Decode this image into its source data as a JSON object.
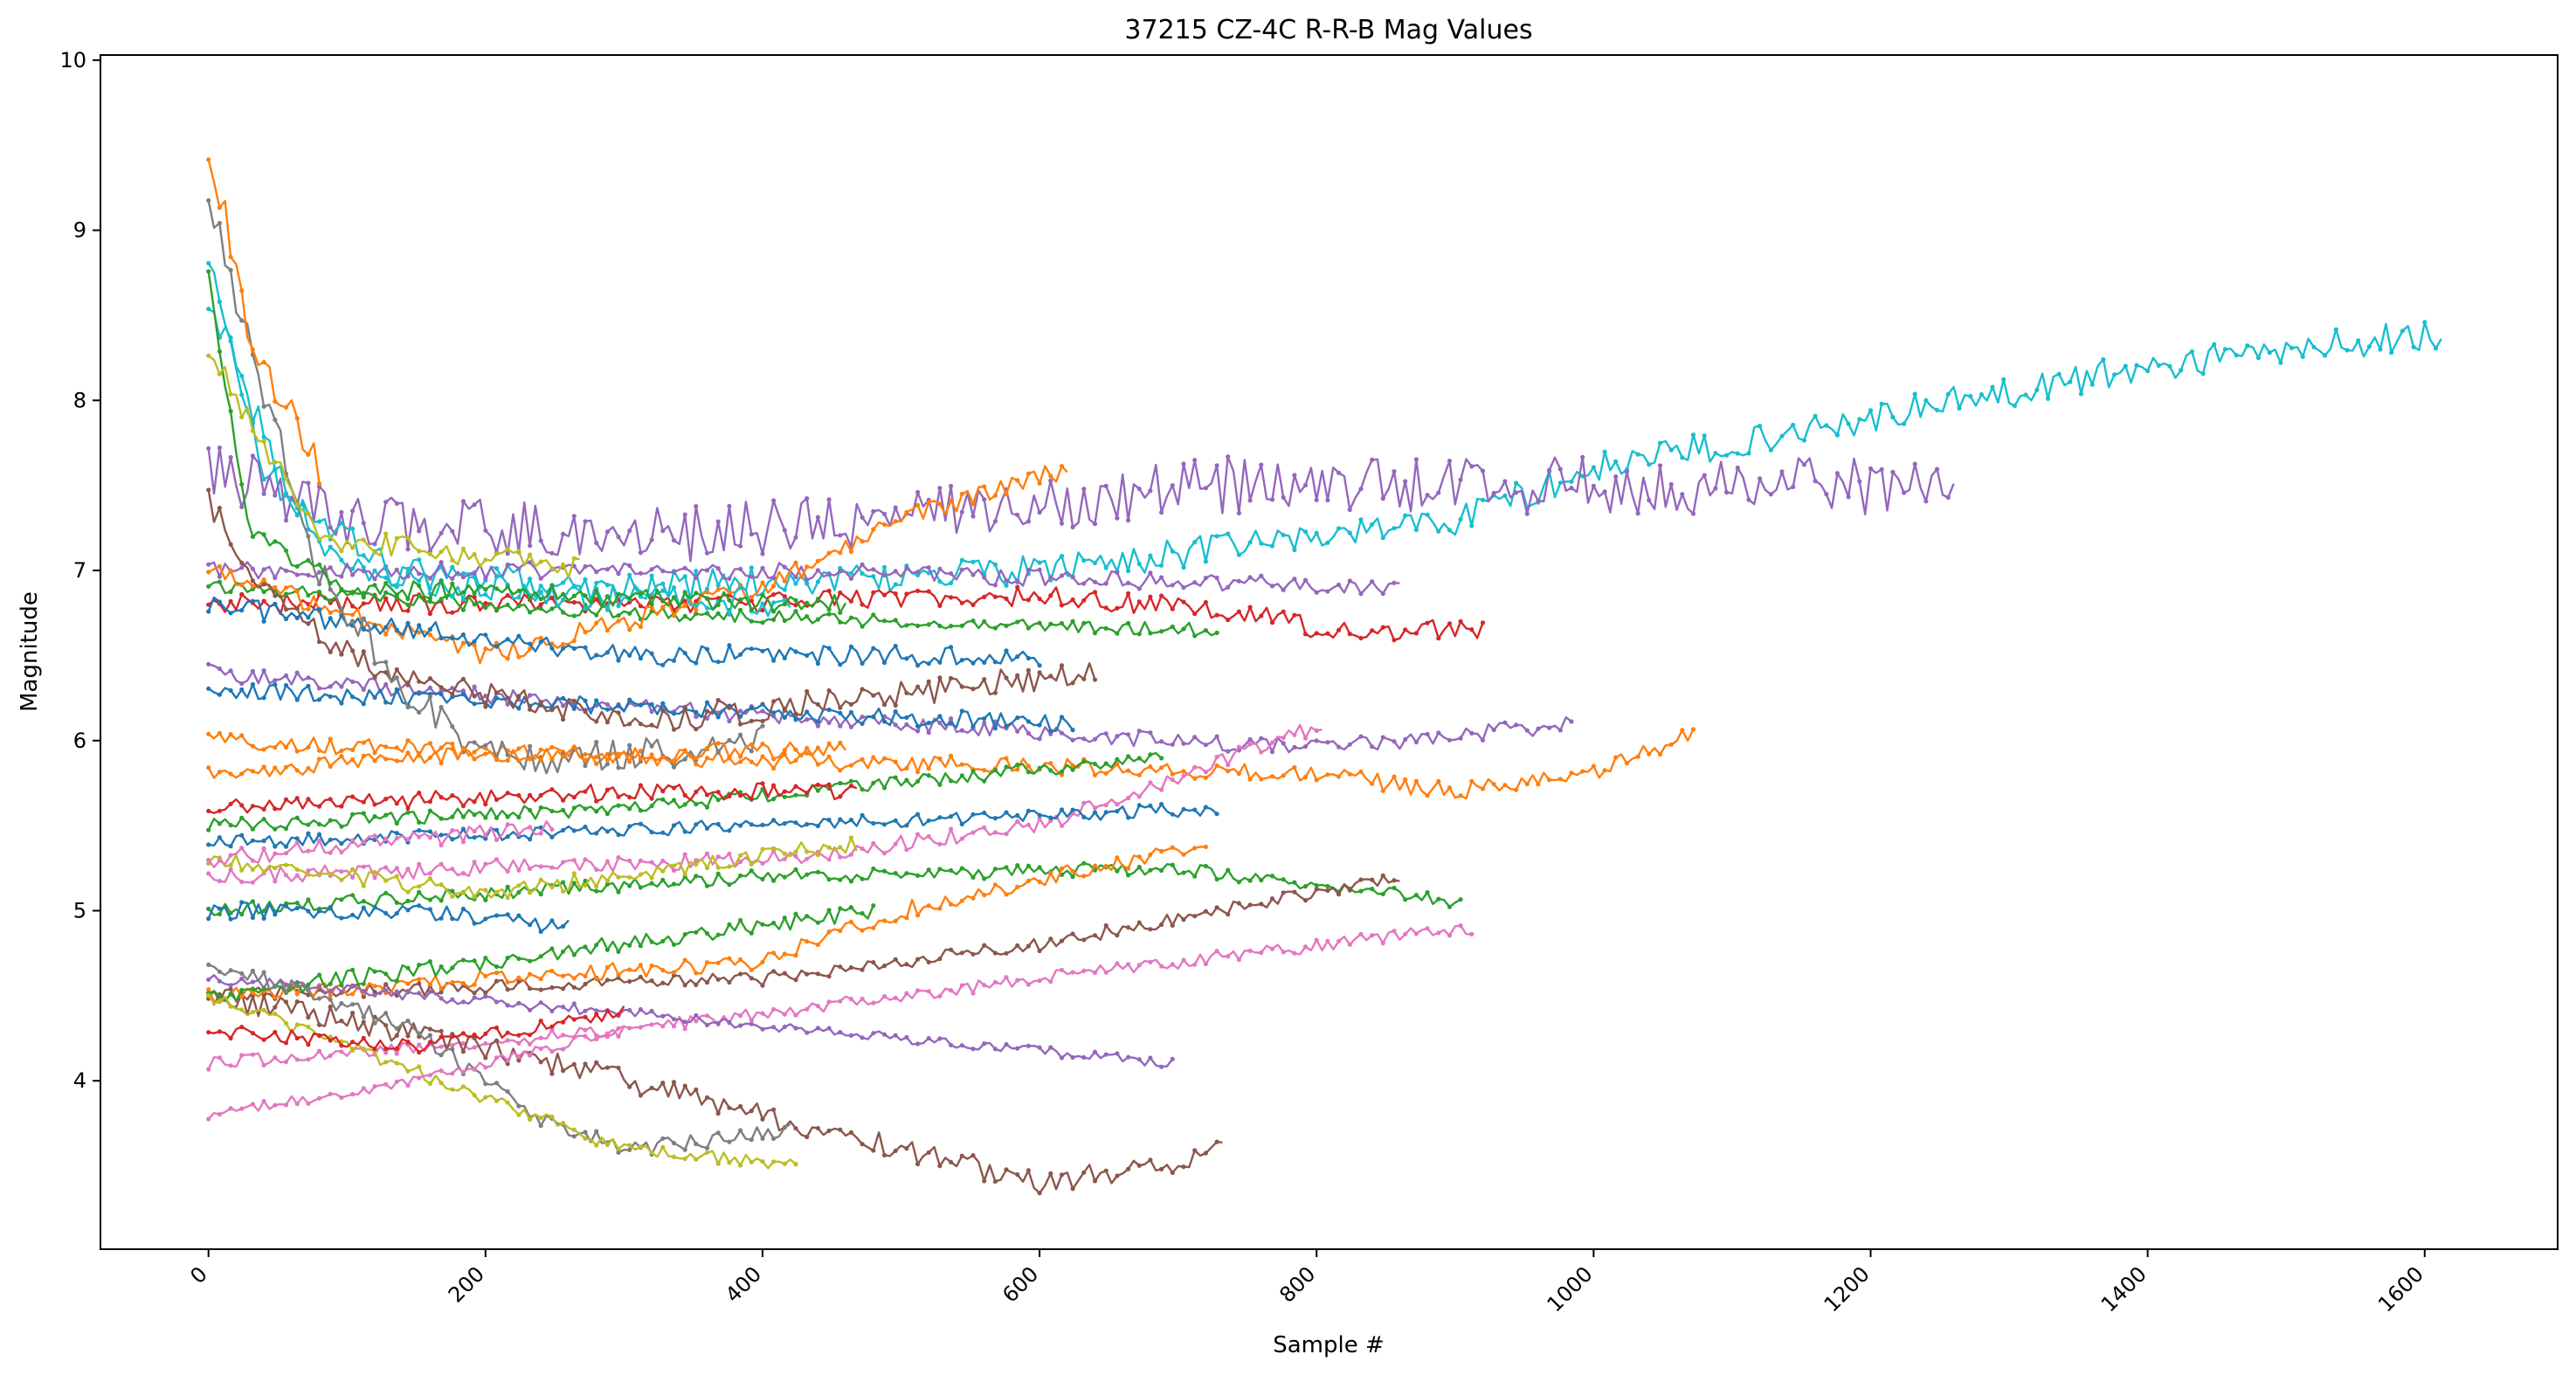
{
  "chart_data": {
    "type": "line",
    "title": "37215 CZ-4C R-R-B Mag Values",
    "xlabel": "Sample #",
    "ylabel": "Magnitude",
    "xlim": [
      -78,
      1696
    ],
    "ylim": [
      3.01,
      10.03
    ],
    "x_ticks": [
      0,
      200,
      400,
      600,
      800,
      1000,
      1200,
      1400,
      1600
    ],
    "y_ticks": [
      4,
      5,
      6,
      7,
      8,
      9,
      10
    ],
    "grid": false,
    "legend": "none",
    "palette": [
      "#1f77b4",
      "#ff7f0e",
      "#2ca02c",
      "#d62728",
      "#9467bd",
      "#8c564b",
      "#e377c2",
      "#7f7f7f",
      "#bcbd22",
      "#17becf"
    ],
    "series": [
      {
        "color": "#17becf",
        "length": 1615,
        "noise": 0.09,
        "points": [
          [
            0,
            8.8
          ],
          [
            40,
            7.6
          ],
          [
            100,
            7.0
          ],
          [
            300,
            6.9
          ],
          [
            600,
            7.0
          ],
          [
            800,
            7.2
          ],
          [
            900,
            7.3
          ],
          [
            1000,
            7.6
          ],
          [
            1200,
            7.9
          ],
          [
            1400,
            8.2
          ],
          [
            1615,
            8.4
          ]
        ]
      },
      {
        "color": "#9467bd",
        "length": 1262,
        "noise": 0.17,
        "points": [
          [
            0,
            7.6
          ],
          [
            100,
            7.3
          ],
          [
            300,
            7.2
          ],
          [
            500,
            7.3
          ],
          [
            700,
            7.5
          ],
          [
            900,
            7.5
          ],
          [
            1100,
            7.5
          ],
          [
            1262,
            7.5
          ]
        ]
      },
      {
        "color": "#ff7f0e",
        "length": 1072,
        "noise": 0.05,
        "points": [
          [
            0,
            6.0
          ],
          [
            300,
            5.9
          ],
          [
            600,
            5.85
          ],
          [
            800,
            5.8
          ],
          [
            900,
            5.7
          ],
          [
            1000,
            5.8
          ],
          [
            1072,
            6.05
          ]
        ]
      },
      {
        "color": "#9467bd",
        "length": 985,
        "noise": 0.05,
        "points": [
          [
            0,
            6.4
          ],
          [
            300,
            6.2
          ],
          [
            600,
            6.05
          ],
          [
            800,
            5.95
          ],
          [
            985,
            6.1
          ]
        ]
      },
      {
        "color": "#d62728",
        "length": 920,
        "noise": 0.06,
        "points": [
          [
            0,
            6.8
          ],
          [
            300,
            6.8
          ],
          [
            600,
            6.85
          ],
          [
            760,
            6.75
          ],
          [
            800,
            6.65
          ],
          [
            920,
            6.65
          ]
        ]
      },
      {
        "color": "#e377c2",
        "length": 912,
        "noise": 0.04,
        "points": [
          [
            0,
            4.1
          ],
          [
            300,
            4.3
          ],
          [
            600,
            4.6
          ],
          [
            912,
            4.9
          ]
        ]
      },
      {
        "color": "#2ca02c",
        "length": 905,
        "noise": 0.04,
        "points": [
          [
            0,
            5.0
          ],
          [
            400,
            5.2
          ],
          [
            700,
            5.25
          ],
          [
            905,
            5.05
          ]
        ]
      },
      {
        "color": "#9467bd",
        "length": 860,
        "noise": 0.05,
        "points": [
          [
            0,
            7.0
          ],
          [
            400,
            7.0
          ],
          [
            860,
            6.9
          ]
        ]
      },
      {
        "color": "#8c564b",
        "length": 860,
        "noise": 0.04,
        "points": [
          [
            0,
            4.5
          ],
          [
            400,
            4.6
          ],
          [
            600,
            4.8
          ],
          [
            860,
            5.2
          ]
        ]
      },
      {
        "color": "#e377c2",
        "length": 805,
        "noise": 0.05,
        "points": [
          [
            0,
            5.2
          ],
          [
            400,
            5.3
          ],
          [
            600,
            5.5
          ],
          [
            805,
            6.1
          ]
        ]
      },
      {
        "color": "#8c564b",
        "length": 735,
        "noise": 0.07,
        "points": [
          [
            0,
            4.5
          ],
          [
            200,
            4.2
          ],
          [
            300,
            4.0
          ],
          [
            400,
            3.8
          ],
          [
            500,
            3.6
          ],
          [
            600,
            3.4
          ],
          [
            700,
            3.5
          ],
          [
            735,
            3.7
          ]
        ]
      },
      {
        "color": "#2ca02c",
        "length": 730,
        "noise": 0.04,
        "points": [
          [
            0,
            6.9
          ],
          [
            300,
            6.75
          ],
          [
            730,
            6.65
          ]
        ]
      },
      {
        "color": "#1f77b4",
        "length": 730,
        "noise": 0.04,
        "points": [
          [
            0,
            5.4
          ],
          [
            400,
            5.5
          ],
          [
            730,
            5.6
          ]
        ]
      },
      {
        "color": "#ff7f0e",
        "length": 720,
        "noise": 0.05,
        "points": [
          [
            0,
            4.5
          ],
          [
            400,
            4.7
          ],
          [
            500,
            5.0
          ],
          [
            720,
            5.4
          ]
        ]
      },
      {
        "color": "#9467bd",
        "length": 698,
        "noise": 0.03,
        "points": [
          [
            0,
            4.6
          ],
          [
            300,
            4.4
          ],
          [
            698,
            4.1
          ]
        ]
      },
      {
        "color": "#2ca02c",
        "length": 690,
        "noise": 0.04,
        "points": [
          [
            0,
            5.5
          ],
          [
            300,
            5.6
          ],
          [
            690,
            5.9
          ]
        ]
      },
      {
        "color": "#ff7f0e",
        "length": 620,
        "noise": 0.06,
        "points": [
          [
            0,
            7.0
          ],
          [
            200,
            6.5
          ],
          [
            400,
            6.9
          ],
          [
            500,
            7.3
          ],
          [
            620,
            7.6
          ]
        ]
      },
      {
        "color": "#1f77b4",
        "length": 625,
        "noise": 0.05,
        "points": [
          [
            0,
            6.3
          ],
          [
            300,
            6.2
          ],
          [
            625,
            6.1
          ]
        ]
      },
      {
        "color": "#8c564b",
        "length": 640,
        "noise": 0.08,
        "points": [
          [
            0,
            7.4
          ],
          [
            50,
            6.8
          ],
          [
            120,
            6.4
          ],
          [
            300,
            6.1
          ],
          [
            640,
            6.4
          ]
        ]
      },
      {
        "color": "#1f77b4",
        "length": 600,
        "noise": 0.06,
        "points": [
          [
            0,
            6.8
          ],
          [
            300,
            6.5
          ],
          [
            600,
            6.5
          ]
        ]
      },
      {
        "color": "#2ca02c",
        "length": 480,
        "noise": 0.05,
        "points": [
          [
            0,
            4.5
          ],
          [
            200,
            4.7
          ],
          [
            480,
            5.0
          ]
        ]
      },
      {
        "color": "#7f7f7f",
        "length": 420,
        "noise": 0.05,
        "points": [
          [
            0,
            4.7
          ],
          [
            150,
            4.3
          ],
          [
            230,
            3.8
          ],
          [
            300,
            3.6
          ],
          [
            420,
            3.7
          ]
        ]
      },
      {
        "color": "#bcbd22",
        "length": 425,
        "noise": 0.04,
        "points": [
          [
            0,
            4.5
          ],
          [
            200,
            3.9
          ],
          [
            300,
            3.6
          ],
          [
            425,
            3.5
          ]
        ]
      },
      {
        "color": "#7f7f7f",
        "length": 400,
        "noise": 0.1,
        "points": [
          [
            0,
            9.2
          ],
          [
            30,
            8.3
          ],
          [
            80,
            7.0
          ],
          [
            140,
            6.3
          ],
          [
            200,
            5.9
          ],
          [
            300,
            5.9
          ],
          [
            400,
            6.0
          ]
        ]
      },
      {
        "color": "#d62728",
        "length": 470,
        "noise": 0.05,
        "points": [
          [
            0,
            5.6
          ],
          [
            300,
            5.7
          ],
          [
            470,
            5.7
          ]
        ]
      },
      {
        "color": "#bcbd22",
        "length": 470,
        "noise": 0.05,
        "points": [
          [
            0,
            5.3
          ],
          [
            200,
            5.1
          ],
          [
            470,
            5.4
          ]
        ]
      },
      {
        "color": "#ff7f0e",
        "length": 460,
        "noise": 0.05,
        "points": [
          [
            0,
            5.8
          ],
          [
            150,
            5.9
          ],
          [
            460,
            5.95
          ]
        ]
      },
      {
        "color": "#17becf",
        "length": 420,
        "noise": 0.09,
        "points": [
          [
            0,
            8.6
          ],
          [
            60,
            7.4
          ],
          [
            150,
            6.9
          ],
          [
            420,
            6.8
          ]
        ]
      },
      {
        "color": "#2ca02c",
        "length": 460,
        "noise": 0.06,
        "points": [
          [
            0,
            8.7
          ],
          [
            30,
            7.2
          ],
          [
            100,
            6.9
          ],
          [
            460,
            6.8
          ]
        ]
      },
      {
        "color": "#bcbd22",
        "length": 270,
        "noise": 0.07,
        "points": [
          [
            0,
            8.3
          ],
          [
            80,
            7.2
          ],
          [
            270,
            7.0
          ]
        ]
      },
      {
        "color": "#1f77b4",
        "length": 260,
        "noise": 0.05,
        "points": [
          [
            0,
            5.0
          ],
          [
            150,
            5.0
          ],
          [
            260,
            4.9
          ]
        ]
      },
      {
        "color": "#d62728",
        "length": 300,
        "noise": 0.04,
        "points": [
          [
            0,
            4.3
          ],
          [
            150,
            4.2
          ],
          [
            300,
            4.4
          ]
        ]
      },
      {
        "color": "#e377c2",
        "length": 250,
        "noise": 0.05,
        "points": [
          [
            0,
            5.3
          ],
          [
            250,
            5.5
          ]
        ]
      },
      {
        "color": "#ff7f0e",
        "length": 80,
        "noise": 0.12,
        "points": [
          [
            0,
            9.5
          ],
          [
            30,
            8.4
          ],
          [
            80,
            7.6
          ]
        ]
      },
      {
        "color": "#e377c2",
        "length": 300,
        "noise": 0.03,
        "points": [
          [
            0,
            3.8
          ],
          [
            150,
            4.0
          ],
          [
            300,
            4.3
          ]
        ]
      }
    ]
  }
}
